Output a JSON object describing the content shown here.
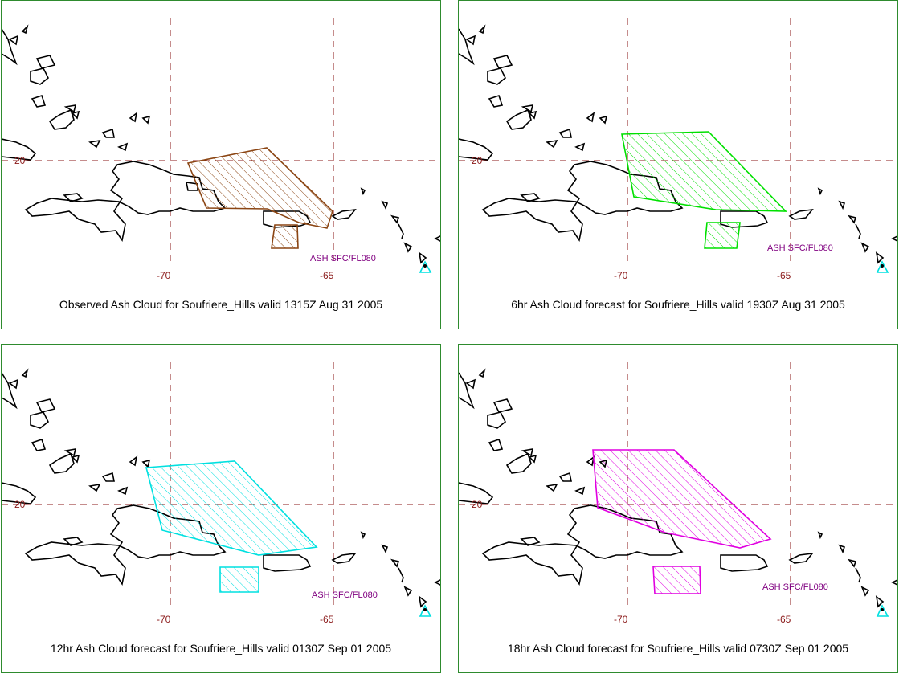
{
  "panels": [
    {
      "caption": "Observed Ash Cloud for Soufriere_Hills valid 1315Z Aug 31 2005",
      "color": "#8b4513",
      "ash_label": "ASH SFC/FL080",
      "lon_labels": [
        "-70",
        "-65"
      ],
      "lat_label": "20"
    },
    {
      "caption": "6hr Ash Cloud forecast for Soufriere_Hills valid 1930Z Aug 31 2005",
      "color": "#00e000",
      "ash_label": "ASH SFC/FL080",
      "lon_labels": [
        "-70",
        "-65"
      ],
      "lat_label": "20"
    },
    {
      "caption": "12hr Ash Cloud forecast for Soufriere_Hills valid 0130Z Sep 01 2005",
      "color": "#00e0e0",
      "ash_label": "ASH SFC/FL080",
      "lon_labels": [
        "-70",
        "-65"
      ],
      "lat_label": "20"
    },
    {
      "caption": "18hr Ash Cloud forecast for Soufriere_Hills valid 0730Z Sep 01 2005",
      "color": "#e000e0",
      "ash_label": "ASH SFC/FL080",
      "lon_labels": [
        "-70",
        "-65"
      ],
      "lat_label": "20"
    }
  ],
  "colors": {
    "grid": "#8b1a1a",
    "label": "#8b1a1a",
    "ash_label": "#800080",
    "coast": "#000000",
    "volcano": "#00e0e0",
    "border": "#2e8b2e"
  }
}
